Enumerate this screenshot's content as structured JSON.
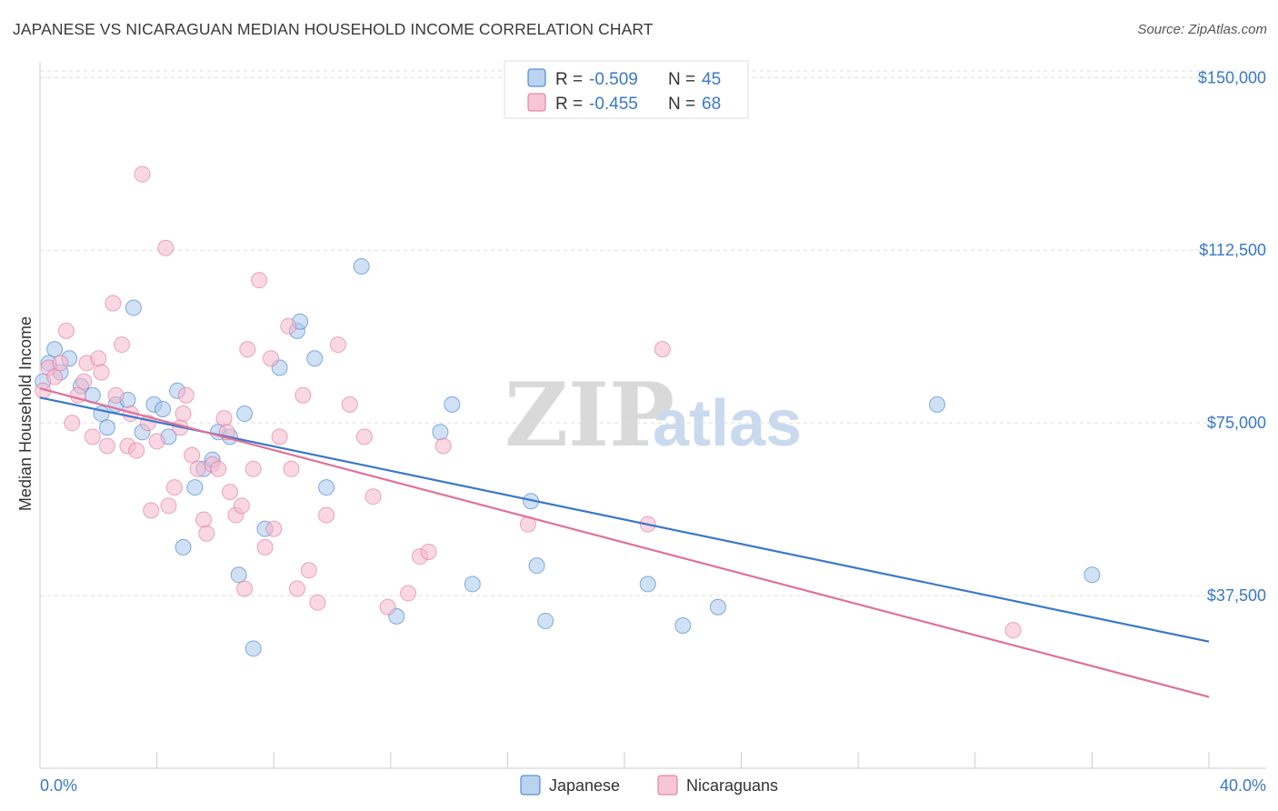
{
  "title": "JAPANESE VS NICARAGUAN MEDIAN HOUSEHOLD INCOME CORRELATION CHART",
  "source": "Source: ZipAtlas.com",
  "watermark": {
    "zip": "ZIP",
    "atlas": "atlas"
  },
  "colors": {
    "japanese": "#3a78c9",
    "japanese_fill": "#a9c8ee",
    "nicaraguan": "#e07098",
    "nicaraguan_fill": "#f5b8cc",
    "grid": "#dddddd",
    "axis_text": "#3a78c9"
  },
  "legend": {
    "rows": [
      {
        "r_label": "R =",
        "r_value": "-0.509",
        "n_label": "N =",
        "n_value": "45"
      },
      {
        "r_label": "R =",
        "r_value": "-0.455",
        "n_label": "N =",
        "n_value": "68"
      }
    ]
  },
  "bottom_legend": [
    "Japanese",
    "Nicaraguans"
  ],
  "chart_data": {
    "type": "scatter",
    "ylabel": "Median Household Income",
    "xlim": [
      0,
      40
    ],
    "ylim": [
      0,
      155000
    ],
    "x_tick_labels": [
      "0.0%",
      "40.0%"
    ],
    "y_ticks": [
      37500,
      75000,
      112500,
      150000
    ],
    "y_tick_labels": [
      "$37,500",
      "$75,000",
      "$112,500",
      "$150,000"
    ],
    "grid": true,
    "legend_position": "top-center",
    "series": [
      {
        "name": "Japanese",
        "trend": {
          "x": [
            0,
            40
          ],
          "y": [
            80500,
            27500
          ]
        },
        "points": [
          [
            0.1,
            84000
          ],
          [
            0.5,
            91000
          ],
          [
            0.7,
            86000
          ],
          [
            1.0,
            89000
          ],
          [
            1.4,
            83000
          ],
          [
            1.8,
            81000
          ],
          [
            2.1,
            77000
          ],
          [
            2.3,
            74000
          ],
          [
            2.6,
            79000
          ],
          [
            3.0,
            80000
          ],
          [
            3.2,
            100000
          ],
          [
            3.5,
            73000
          ],
          [
            3.9,
            79000
          ],
          [
            4.2,
            78000
          ],
          [
            4.4,
            72000
          ],
          [
            4.7,
            82000
          ],
          [
            4.9,
            48000
          ],
          [
            5.3,
            61000
          ],
          [
            5.6,
            65000
          ],
          [
            5.9,
            67000
          ],
          [
            6.1,
            73000
          ],
          [
            6.5,
            72000
          ],
          [
            6.8,
            42000
          ],
          [
            7.0,
            77000
          ],
          [
            7.3,
            26000
          ],
          [
            7.7,
            52000
          ],
          [
            8.2,
            87000
          ],
          [
            8.8,
            95000
          ],
          [
            8.9,
            97000
          ],
          [
            9.4,
            89000
          ],
          [
            9.8,
            61000
          ],
          [
            11.0,
            109000
          ],
          [
            12.2,
            33000
          ],
          [
            13.7,
            73000
          ],
          [
            14.1,
            79000
          ],
          [
            14.8,
            40000
          ],
          [
            16.8,
            58000
          ],
          [
            17.0,
            44000
          ],
          [
            17.3,
            32000
          ],
          [
            20.8,
            40000
          ],
          [
            22.0,
            31000
          ],
          [
            23.2,
            35000
          ],
          [
            30.7,
            79000
          ],
          [
            36.0,
            42000
          ],
          [
            0.3,
            88000
          ]
        ]
      },
      {
        "name": "Nicaraguans",
        "trend": {
          "x": [
            0,
            40
          ],
          "y": [
            82500,
            15500
          ]
        },
        "points": [
          [
            0.1,
            82000
          ],
          [
            0.3,
            87000
          ],
          [
            0.5,
            85000
          ],
          [
            0.7,
            88000
          ],
          [
            0.9,
            95000
          ],
          [
            1.1,
            75000
          ],
          [
            1.3,
            81000
          ],
          [
            1.5,
            84000
          ],
          [
            1.6,
            88000
          ],
          [
            1.8,
            72000
          ],
          [
            2.0,
            89000
          ],
          [
            2.1,
            86000
          ],
          [
            2.3,
            70000
          ],
          [
            2.5,
            101000
          ],
          [
            2.6,
            81000
          ],
          [
            2.8,
            92000
          ],
          [
            3.0,
            70000
          ],
          [
            3.1,
            77000
          ],
          [
            3.3,
            69000
          ],
          [
            3.5,
            129000
          ],
          [
            3.7,
            75000
          ],
          [
            3.8,
            56000
          ],
          [
            4.0,
            71000
          ],
          [
            4.3,
            113000
          ],
          [
            4.4,
            57000
          ],
          [
            4.6,
            61000
          ],
          [
            4.8,
            74000
          ],
          [
            4.9,
            77000
          ],
          [
            5.0,
            81000
          ],
          [
            5.2,
            68000
          ],
          [
            5.4,
            65000
          ],
          [
            5.6,
            54000
          ],
          [
            5.7,
            51000
          ],
          [
            5.9,
            66000
          ],
          [
            6.1,
            65000
          ],
          [
            6.3,
            76000
          ],
          [
            6.4,
            73000
          ],
          [
            6.5,
            60000
          ],
          [
            6.7,
            55000
          ],
          [
            6.9,
            57000
          ],
          [
            7.0,
            39000
          ],
          [
            7.1,
            91000
          ],
          [
            7.3,
            65000
          ],
          [
            7.5,
            106000
          ],
          [
            7.7,
            48000
          ],
          [
            7.9,
            89000
          ],
          [
            8.0,
            52000
          ],
          [
            8.2,
            72000
          ],
          [
            8.5,
            96000
          ],
          [
            8.6,
            65000
          ],
          [
            8.8,
            39000
          ],
          [
            9.0,
            81000
          ],
          [
            9.2,
            43000
          ],
          [
            9.5,
            36000
          ],
          [
            9.8,
            55000
          ],
          [
            10.2,
            92000
          ],
          [
            10.6,
            79000
          ],
          [
            11.1,
            72000
          ],
          [
            11.4,
            59000
          ],
          [
            11.9,
            35000
          ],
          [
            12.6,
            38000
          ],
          [
            13.0,
            46000
          ],
          [
            13.3,
            47000
          ],
          [
            13.8,
            70000
          ],
          [
            16.7,
            53000
          ],
          [
            20.8,
            53000
          ],
          [
            21.3,
            91000
          ],
          [
            33.3,
            30000
          ]
        ]
      }
    ]
  }
}
